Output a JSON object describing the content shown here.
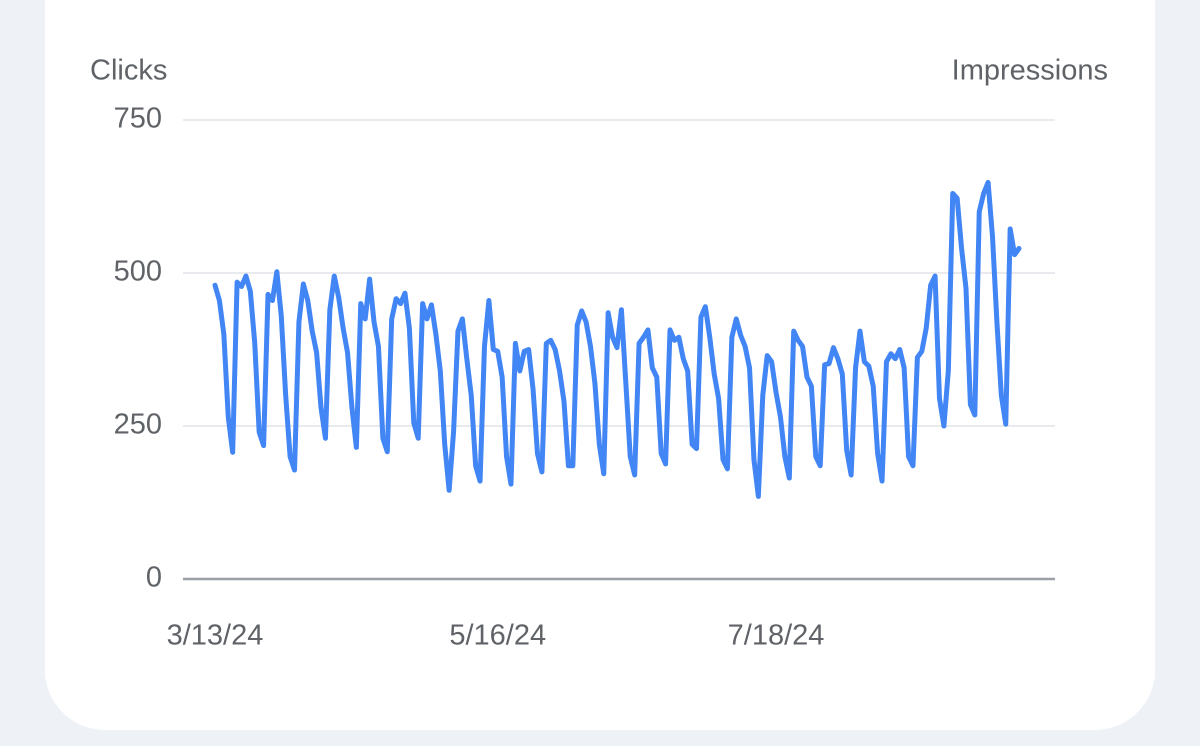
{
  "chart_data": {
    "type": "line",
    "y_label": "Clicks",
    "y2_label": "Impressions",
    "categories": [
      "3/13/24",
      null,
      null,
      null,
      null,
      null,
      null,
      null,
      null,
      null,
      null,
      null,
      null,
      null,
      null,
      null,
      null,
      null,
      null,
      null,
      null,
      null,
      null,
      null,
      null,
      null,
      null,
      null,
      null,
      null,
      null,
      null,
      null,
      null,
      null,
      null,
      null,
      null,
      null,
      null,
      null,
      null,
      null,
      null,
      null,
      null,
      null,
      null,
      null,
      null,
      null,
      null,
      null,
      null,
      null,
      null,
      null,
      null,
      null,
      null,
      null,
      null,
      null,
      null,
      "5/16/24",
      null,
      null,
      null,
      null,
      null,
      null,
      null,
      null,
      null,
      null,
      null,
      null,
      null,
      null,
      null,
      null,
      null,
      null,
      null,
      null,
      null,
      null,
      null,
      null,
      null,
      null,
      null,
      null,
      null,
      null,
      null,
      null,
      null,
      null,
      null,
      null,
      null,
      null,
      null,
      null,
      null,
      null,
      null,
      null,
      null,
      null,
      null,
      null,
      null,
      null,
      null,
      null,
      null,
      null,
      null,
      null,
      null,
      null,
      null,
      null,
      null,
      null,
      "7/18/24",
      null,
      null,
      null,
      null,
      null,
      null,
      null,
      null,
      null,
      null,
      null,
      null,
      null,
      null,
      null,
      null,
      null,
      null,
      null,
      null,
      null,
      null,
      null,
      null,
      null,
      null,
      null,
      null,
      null,
      null,
      null,
      null,
      null,
      null,
      null,
      null,
      null,
      null,
      null,
      null,
      null,
      null,
      null,
      null,
      null,
      null,
      null,
      null,
      null,
      null,
      null,
      null,
      null,
      null,
      null
    ],
    "series": [
      {
        "name": "Clicks",
        "color": "#4285f4",
        "values": [
          480,
          455,
          400,
          265,
          207,
          485,
          478,
          495,
          470,
          385,
          240,
          218,
          465,
          455,
          502,
          430,
          300,
          200,
          178,
          420,
          482,
          455,
          405,
          370,
          280,
          230,
          440,
          495,
          460,
          410,
          370,
          280,
          215,
          450,
          425,
          490,
          420,
          380,
          230,
          208,
          425,
          458,
          450,
          467,
          410,
          255,
          230,
          450,
          425,
          448,
          400,
          340,
          220,
          145,
          240,
          405,
          425,
          360,
          300,
          185,
          160,
          380,
          455,
          375,
          372,
          330,
          200,
          155,
          385,
          340,
          372,
          375,
          310,
          205,
          175,
          385,
          390,
          375,
          340,
          290,
          185,
          185,
          415,
          438,
          420,
          380,
          320,
          220,
          172,
          435,
          395,
          378,
          440,
          320,
          200,
          170,
          385,
          395,
          407,
          345,
          330,
          205,
          188,
          407,
          390,
          395,
          360,
          340,
          220,
          213,
          428,
          445,
          395,
          335,
          295,
          195,
          180,
          395,
          425,
          398,
          380,
          345,
          195,
          135,
          300,
          365,
          355,
          305,
          265,
          200,
          165,
          405,
          390,
          380,
          330,
          315,
          200,
          185,
          350,
          352,
          378,
          360,
          335,
          210,
          170,
          345,
          405,
          355,
          348,
          315,
          205,
          160,
          355,
          368,
          360,
          375,
          345,
          200,
          185,
          362,
          372,
          410,
          480,
          495,
          295,
          250,
          340,
          630,
          622,
          540,
          475,
          285,
          268,
          600,
          630,
          648,
          560,
          420,
          300,
          253,
          572,
          530,
          540
        ]
      }
    ],
    "ylim": [
      0,
      750
    ],
    "yticks": [
      0,
      250,
      500,
      750
    ],
    "grid": true
  }
}
